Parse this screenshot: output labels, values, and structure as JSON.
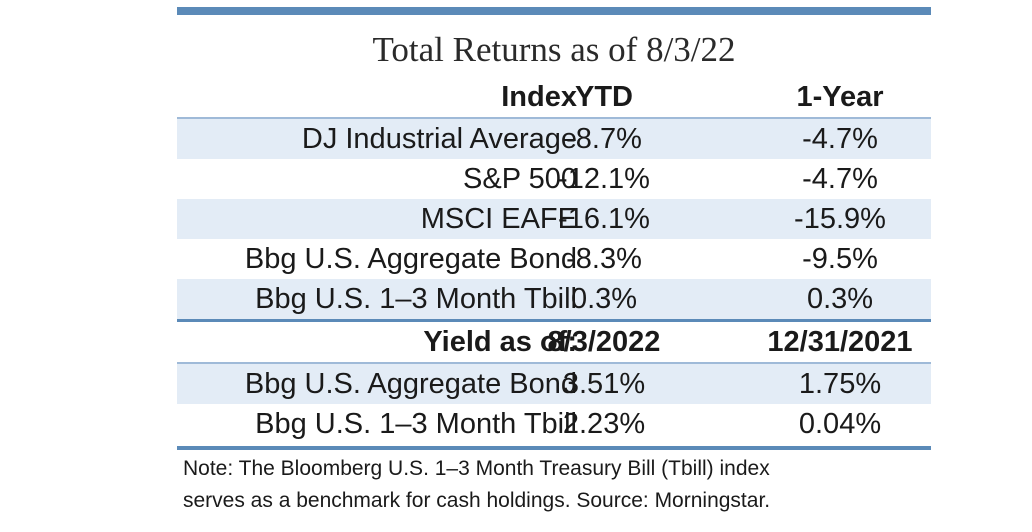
{
  "title": "Total Returns as of 8/3/22",
  "returns_header": {
    "index": "Index",
    "ytd": "YTD",
    "one_year": "1-Year"
  },
  "returns": [
    {
      "name": "DJ Industrial Average",
      "ytd": "-8.7%",
      "one_year": "-4.7%"
    },
    {
      "name": "S&P 500",
      "ytd": "-12.1%",
      "one_year": "-4.7%"
    },
    {
      "name": "MSCI EAFE",
      "ytd": "-16.1%",
      "one_year": "-15.9%"
    },
    {
      "name": "Bbg U.S. Aggregate Bond",
      "ytd": "-8.3%",
      "one_year": "-9.5%"
    },
    {
      "name": "Bbg U.S. 1–3 Month Tbill",
      "ytd": "0.3%",
      "one_year": "0.3%"
    }
  ],
  "yield_header": {
    "label": "Yield as of:",
    "date1": "8/3/2022",
    "date2": "12/31/2021"
  },
  "yields": [
    {
      "name": "Bbg U.S. Aggregate Bond",
      "date1": "3.51%",
      "date2": "1.75%"
    },
    {
      "name": "Bbg U.S. 1–3 Month Tbill",
      "date1": "2.23%",
      "date2": "0.04%"
    }
  ],
  "note": {
    "line1": "Note: The Bloomberg U.S. 1–3 Month Treasury Bill (Tbill) index",
    "line2": "serves as a benchmark for cash holdings. Source: Morningstar."
  },
  "colors": {
    "accent": "#5b8ab8",
    "row_shade": "#e3ecf6",
    "row_edge": "#9fbad8"
  }
}
